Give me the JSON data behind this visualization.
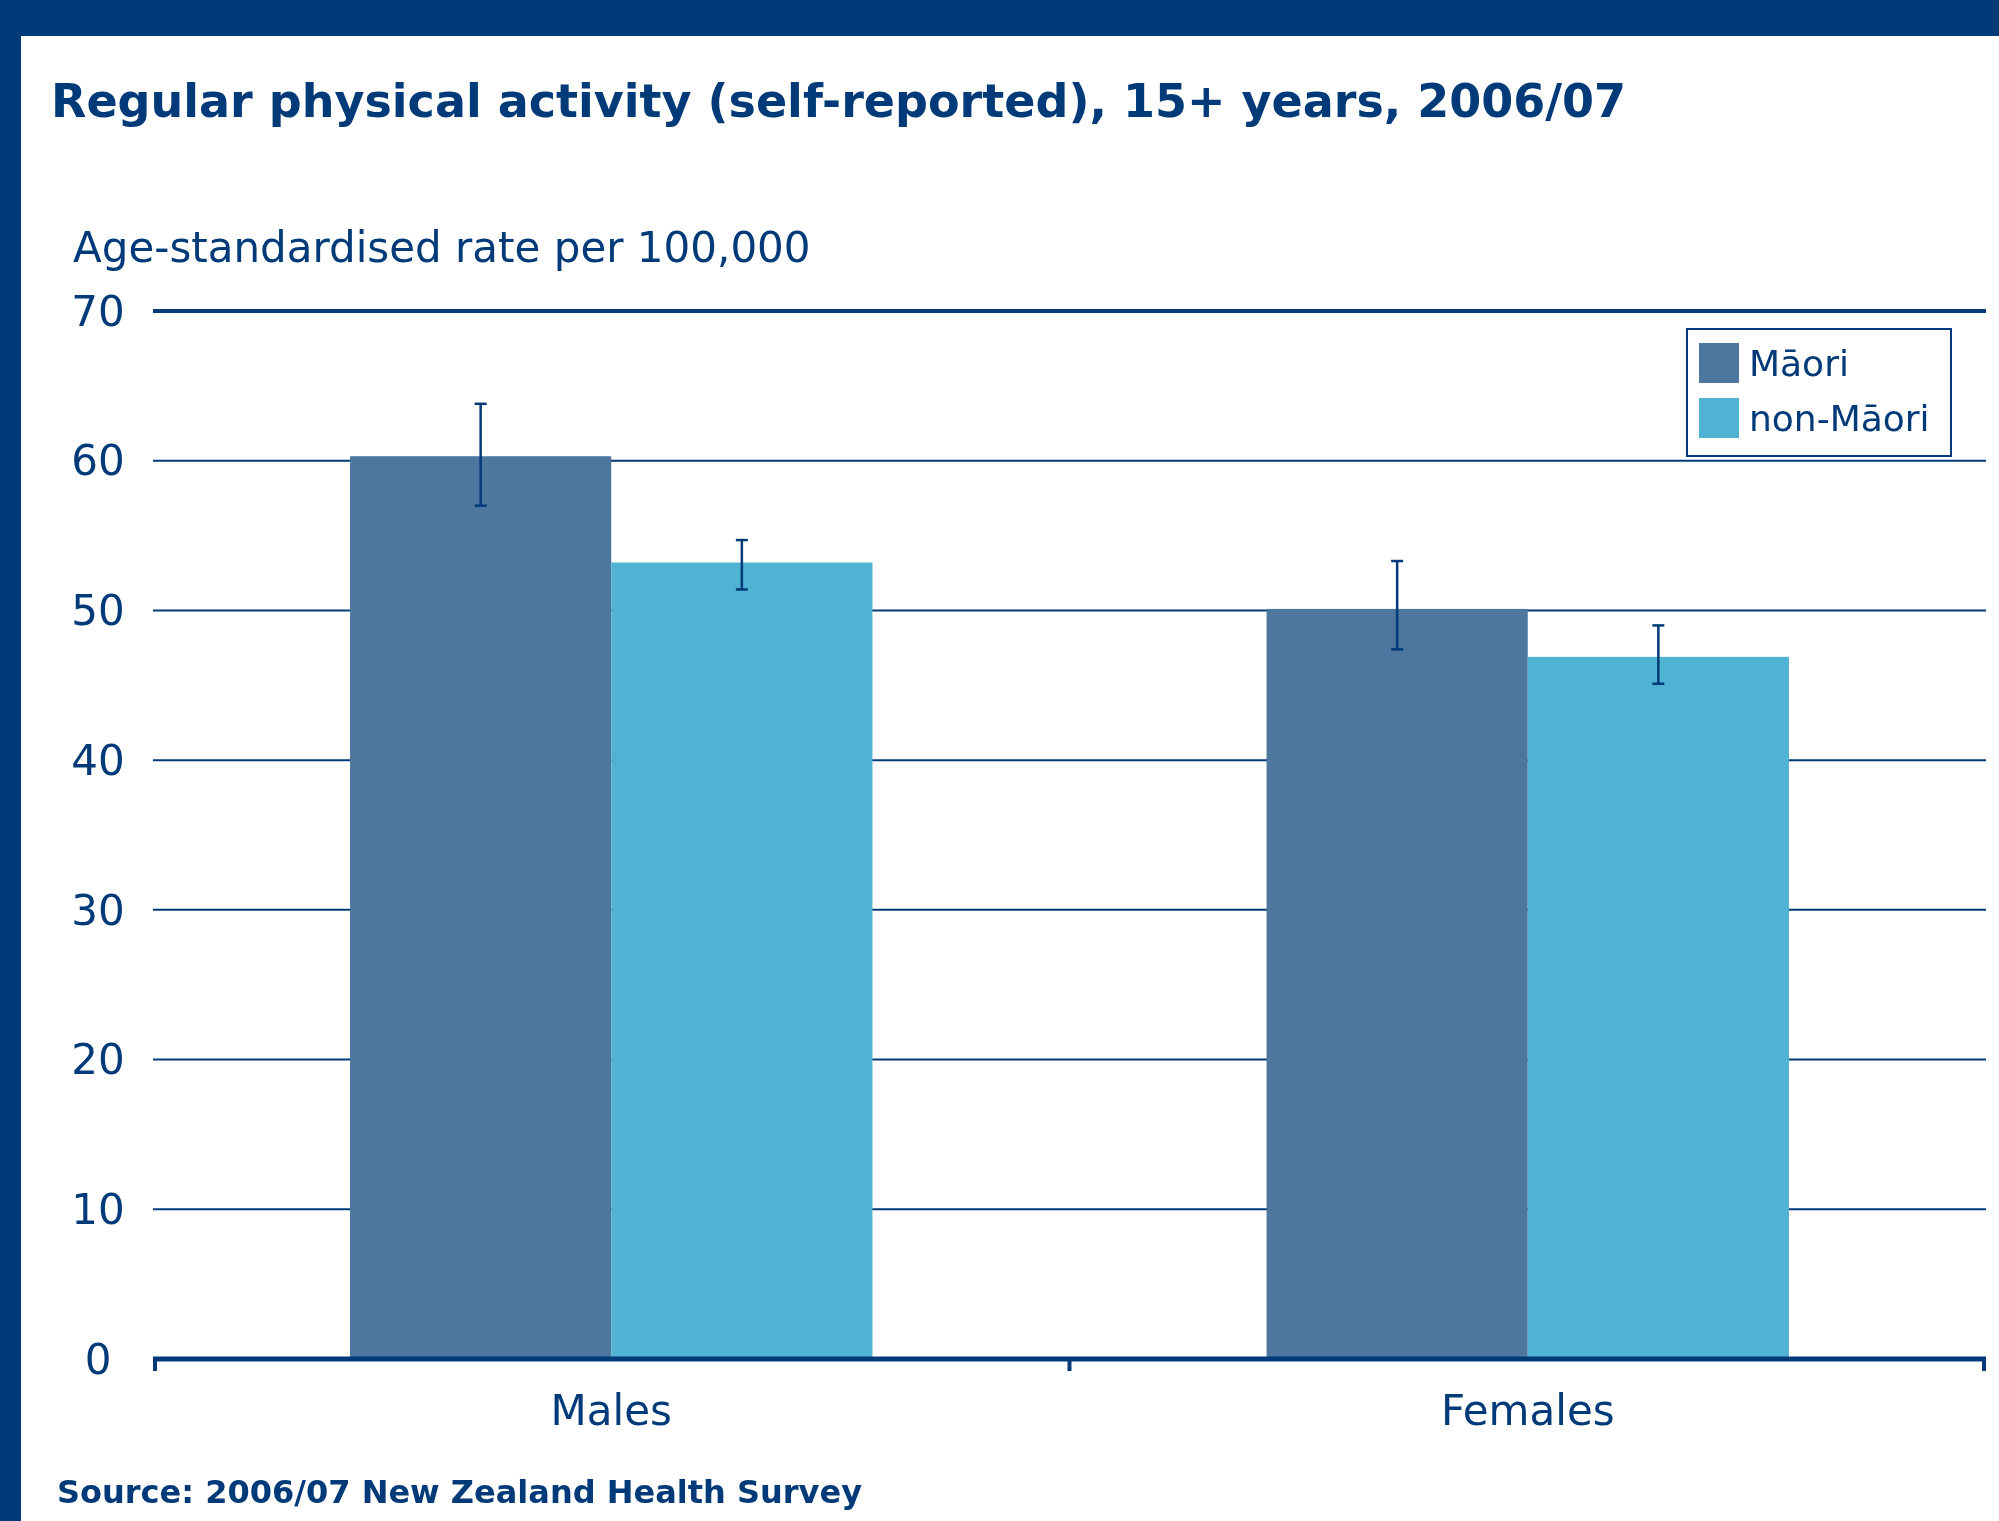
{
  "chart_data": {
    "type": "bar",
    "title": "Regular physical activity (self-reported), 15+ years, 2006/07",
    "ylabel": "Age-standardised rate per 100,000",
    "categories": [
      "Males",
      "Females"
    ],
    "series": [
      {
        "name": "Māori",
        "color": "#4e77a0",
        "values": [
          60.3,
          50.1
        ],
        "errors": [
          [
            57.0,
            63.8
          ],
          [
            47.4,
            53.3
          ]
        ]
      },
      {
        "name": "non-Māori",
        "color": "#50b3d3",
        "values": [
          53.2,
          46.9
        ],
        "errors": [
          [
            51.4,
            54.7
          ],
          [
            45.1,
            49.0
          ]
        ]
      }
    ],
    "ylim": [
      0,
      70
    ],
    "yticks": [
      0,
      10,
      20,
      30,
      40,
      50,
      60,
      70
    ],
    "grid": "y",
    "legend": "top right",
    "annotations": [
      "Source: 2006/07 New Zealand Health Survey"
    ]
  }
}
